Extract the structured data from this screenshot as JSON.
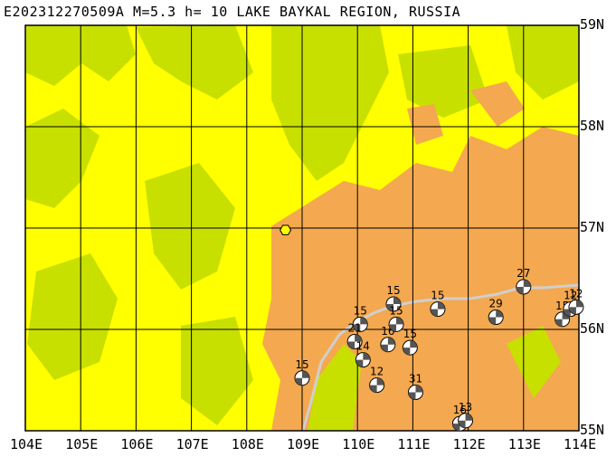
{
  "title": "E202312270509A M=5.3 h= 10 LAKE BAYKAL REGION, RUSSIA",
  "colors": {
    "low_plain": "#ffff00",
    "vegetation": "#c8e000",
    "highland": "#f4a850",
    "grid": "#000000",
    "fault_line": "#cfcfcf",
    "epicenter": "#ffff00"
  },
  "map": {
    "lon_range": [
      104,
      114
    ],
    "lat_range": [
      55,
      59
    ],
    "lon_labels": [
      "104E",
      "105E",
      "106E",
      "107E",
      "108E",
      "109E",
      "110E",
      "111E",
      "112E",
      "113E",
      "114E"
    ],
    "lat_labels": [
      "59N",
      "58N",
      "57N",
      "56N",
      "55N"
    ],
    "epicenter": {
      "lon": 108.7,
      "lat": 56.98
    }
  },
  "events": [
    {
      "label": "15",
      "lon": 109.0,
      "lat": 55.52
    },
    {
      "label": "15",
      "lon": 110.05,
      "lat": 56.05
    },
    {
      "label": "21",
      "lon": 109.95,
      "lat": 55.88
    },
    {
      "label": "14",
      "lon": 110.1,
      "lat": 55.7
    },
    {
      "label": "16",
      "lon": 110.55,
      "lat": 55.85
    },
    {
      "label": "15",
      "lon": 110.65,
      "lat": 56.25
    },
    {
      "label": "15",
      "lon": 110.7,
      "lat": 56.05
    },
    {
      "label": "15",
      "lon": 110.95,
      "lat": 55.82
    },
    {
      "label": "12",
      "lon": 110.35,
      "lat": 55.45
    },
    {
      "label": "31",
      "lon": 111.05,
      "lat": 55.38
    },
    {
      "label": "15",
      "lon": 111.45,
      "lat": 56.2
    },
    {
      "label": "16",
      "lon": 111.85,
      "lat": 55.07
    },
    {
      "label": "13",
      "lon": 111.95,
      "lat": 55.1
    },
    {
      "label": "29",
      "lon": 112.5,
      "lat": 56.12
    },
    {
      "label": "27",
      "lon": 113.0,
      "lat": 56.42
    },
    {
      "label": "15",
      "lon": 113.7,
      "lat": 56.1
    },
    {
      "label": "12",
      "lon": 113.85,
      "lat": 56.2
    },
    {
      "label": "12",
      "lon": 113.95,
      "lat": 56.22
    }
  ]
}
